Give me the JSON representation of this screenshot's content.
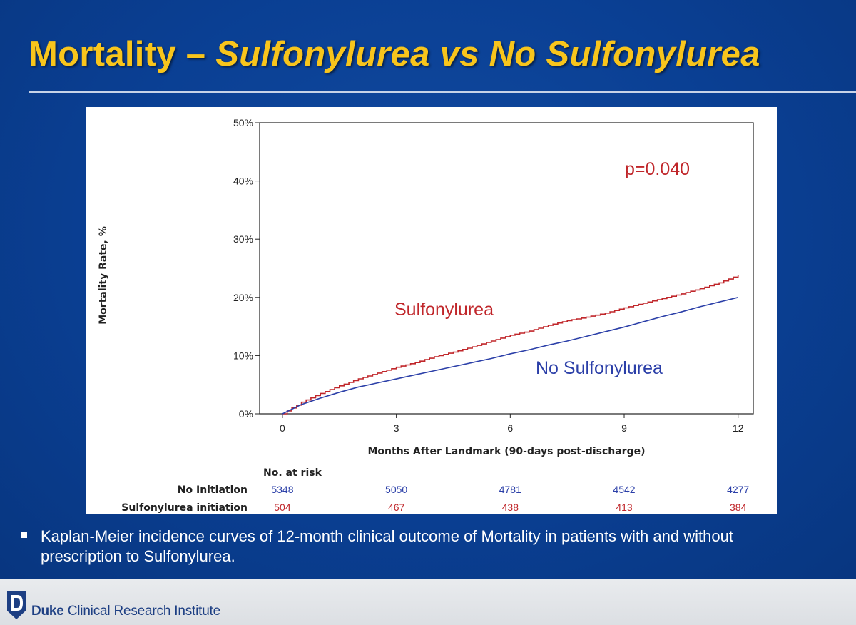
{
  "slide": {
    "title_plain": "Mortality – ",
    "title_italic": "Sulfonylurea vs No Sulfonylurea",
    "bullet": "Kaplan-Meier incidence curves of 12-month clinical outcome of Mortality in patients with and without prescription to Sulfonylurea.",
    "footer_bold": "Duke",
    "footer_rest": " Clinical Research Institute"
  },
  "colors": {
    "title": "#f8c51c",
    "background": "#0a3f93",
    "sulfonylurea": "#c0262a",
    "no_sulfonylurea": "#2b3fa8"
  },
  "chart_data": {
    "type": "line",
    "xlabel": "Months After Landmark (90-days post-discharge)",
    "ylabel": "Mortality Rate, %",
    "xlim": [
      -0.6,
      12.4
    ],
    "ylim": [
      0,
      50
    ],
    "xticks": [
      0,
      3,
      6,
      9,
      12
    ],
    "yticks": [
      0,
      10,
      20,
      30,
      40,
      50
    ],
    "ytick_suffix": "%",
    "annotation": "p=0.040",
    "grid": false,
    "series": [
      {
        "name": "Sulfonylurea",
        "color": "#c0262a",
        "step": true,
        "x": [
          0,
          0.5,
          1,
          1.5,
          2,
          2.5,
          3,
          3.5,
          4,
          4.5,
          5,
          5.5,
          6,
          6.5,
          7,
          7.5,
          8,
          8.5,
          9,
          9.5,
          10,
          10.5,
          11,
          11.5,
          12
        ],
        "y": [
          0,
          2.0,
          3.5,
          4.8,
          6.0,
          7.0,
          8.0,
          8.8,
          9.8,
          10.6,
          11.5,
          12.5,
          13.5,
          14.2,
          15.2,
          16.0,
          16.6,
          17.3,
          18.2,
          19.0,
          19.8,
          20.6,
          21.5,
          22.5,
          23.8
        ]
      },
      {
        "name": "No Sulfonylurea",
        "color": "#2b3fa8",
        "step": false,
        "x": [
          0,
          0.5,
          1,
          1.5,
          2,
          2.5,
          3,
          3.5,
          4,
          4.5,
          5,
          5.5,
          6,
          6.5,
          7,
          7.5,
          8,
          8.5,
          9,
          9.5,
          10,
          10.5,
          11,
          11.5,
          12
        ],
        "y": [
          0,
          1.6,
          2.7,
          3.7,
          4.6,
          5.3,
          6.0,
          6.7,
          7.4,
          8.1,
          8.8,
          9.5,
          10.3,
          11.0,
          11.8,
          12.5,
          13.3,
          14.1,
          14.9,
          15.8,
          16.7,
          17.5,
          18.4,
          19.2,
          20.0
        ]
      }
    ],
    "risk_table": {
      "header": "No. at risk",
      "times": [
        0,
        3,
        6,
        9,
        12
      ],
      "rows": [
        {
          "label": "No Initiation",
          "color": "#2b3fa8",
          "values": [
            "5348",
            "5050",
            "4781",
            "4542",
            "4277"
          ]
        },
        {
          "label": "Sulfonylurea initiation",
          "color": "#c0262a",
          "values": [
            "504",
            "467",
            "438",
            "413",
            "384"
          ]
        }
      ]
    }
  }
}
